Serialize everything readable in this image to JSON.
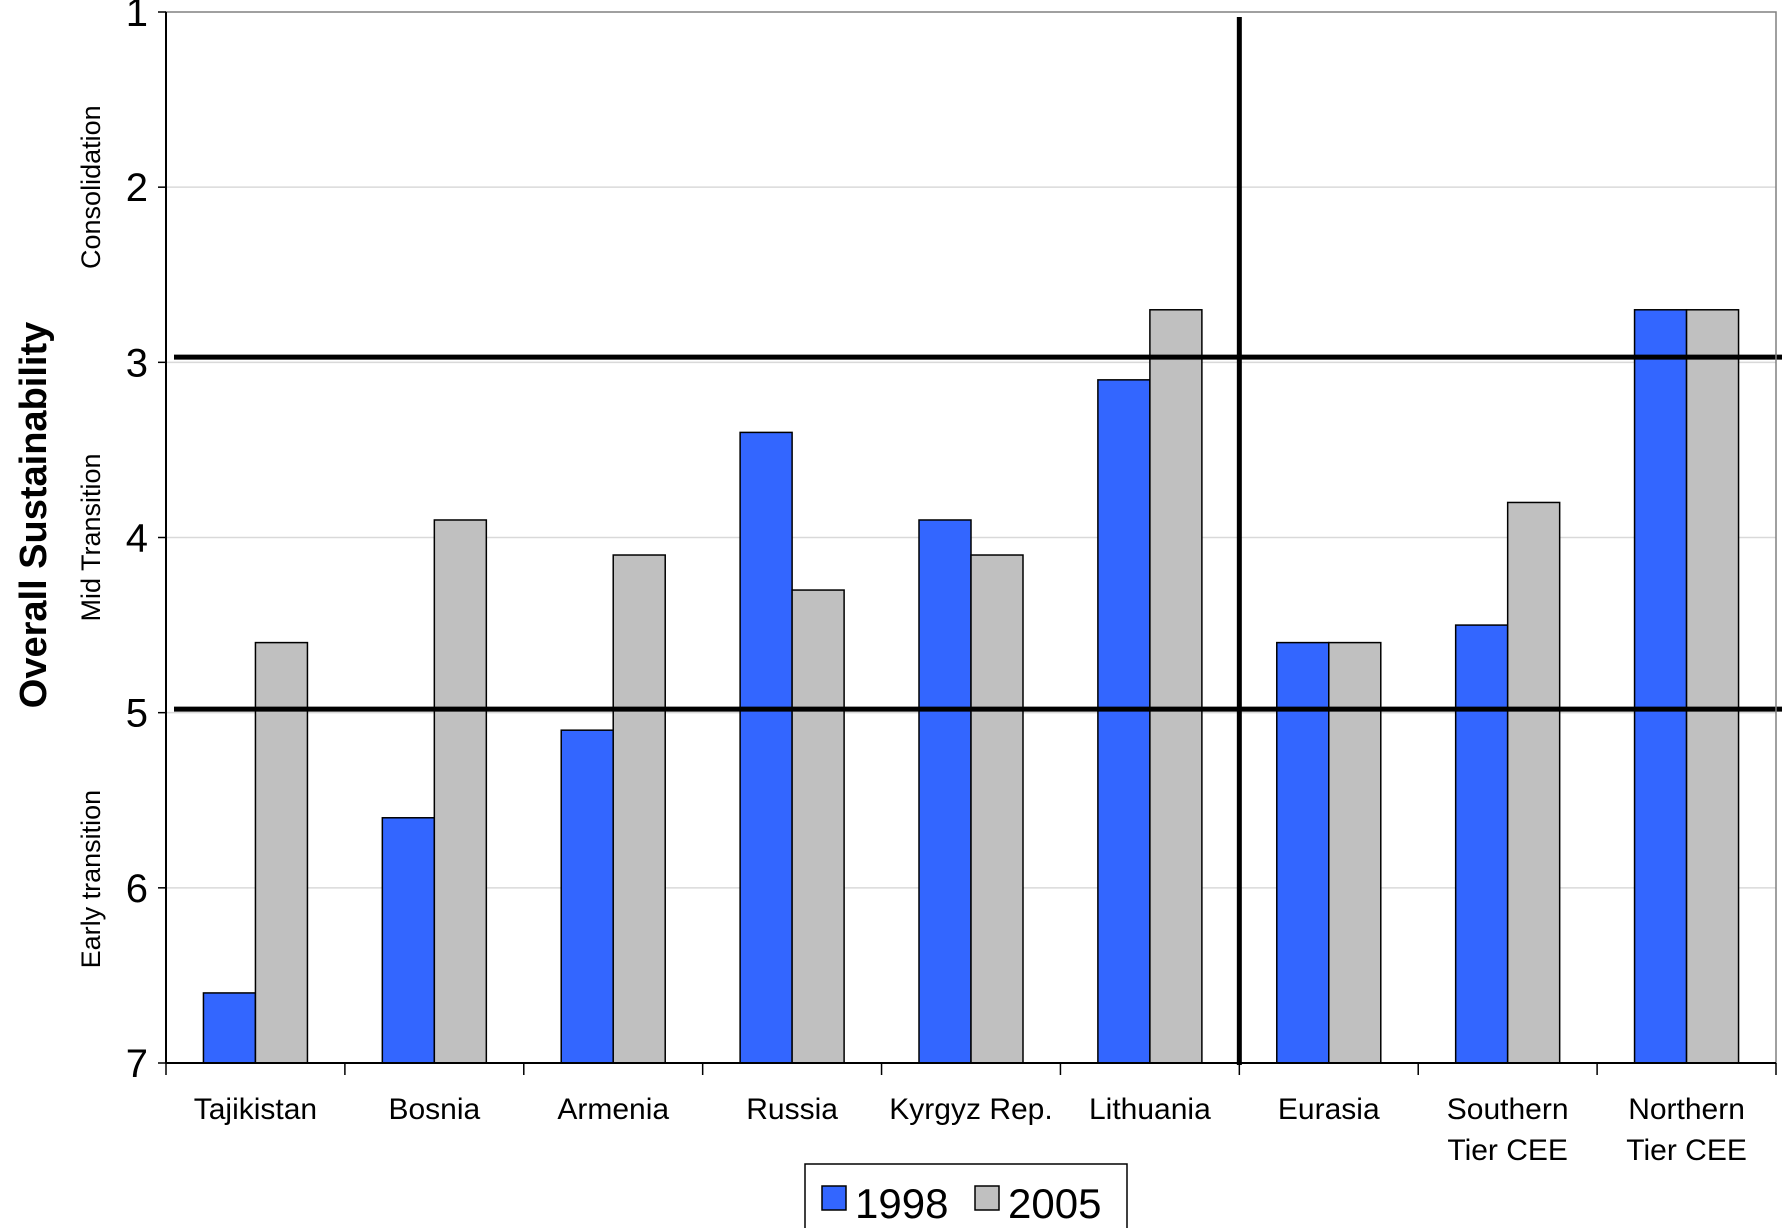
{
  "chart_data": {
    "type": "bar",
    "ylabel": "Overall Sustainability",
    "xlabel": "",
    "title": "",
    "y_axis_inverted": true,
    "ylim": [
      1,
      7
    ],
    "yticks": [
      1,
      2,
      3,
      4,
      5,
      6,
      7
    ],
    "grid": true,
    "legend_position": "bottom-center",
    "categories": [
      [
        "Tajikistan"
      ],
      [
        "Bosnia"
      ],
      [
        "Armenia"
      ],
      [
        "Russia"
      ],
      [
        "Kyrgyz Rep."
      ],
      [
        "Lithuania"
      ],
      [
        "Eurasia"
      ],
      [
        "Southern",
        "Tier CEE"
      ],
      [
        "Northern",
        "Tier CEE"
      ]
    ],
    "series": [
      {
        "name": "1998",
        "color": "#3366ff",
        "values": [
          6.6,
          5.6,
          5.1,
          3.4,
          3.9,
          3.1,
          4.6,
          4.5,
          2.7
        ]
      },
      {
        "name": "2005",
        "color": "#c0c0c0",
        "values": [
          4.6,
          3.9,
          4.1,
          4.3,
          4.1,
          2.7,
          4.6,
          3.8,
          2.7
        ]
      }
    ],
    "threshold_lines": [
      2.97,
      4.98
    ],
    "group_divider_after_category": 6,
    "bands": [
      {
        "label": "Consolidation",
        "center": 2.0
      },
      {
        "label": "Mid Transition",
        "center": 4.0
      },
      {
        "label": "Early transition",
        "center": 5.95
      }
    ]
  }
}
